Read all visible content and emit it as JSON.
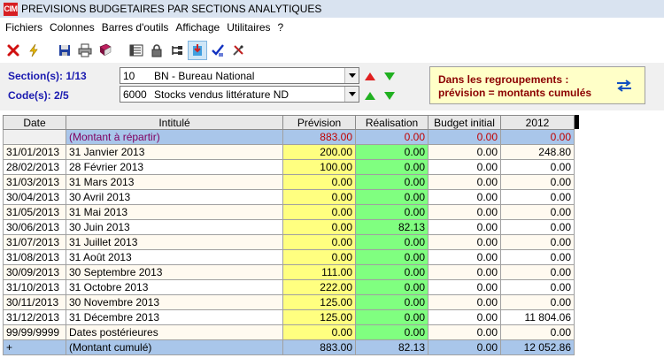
{
  "window": {
    "logo": "CIM",
    "title": "PREVISIONS BUDGETAIRES PAR SECTIONS ANALYTIQUES"
  },
  "menu": [
    "Fichiers",
    "Colonnes",
    "Barres d'outils",
    "Affichage",
    "Utilitaires",
    "?"
  ],
  "toolbar": {
    "buttons": [
      "close-icon",
      "lightning-icon",
      "save-icon",
      "print-icon",
      "book-icon",
      "list-view-icon",
      "lock-icon",
      "tree-icon",
      "import-icon",
      "check-icon",
      "tools-icon"
    ]
  },
  "filters": {
    "section_label": "Section(s): 1/13",
    "section_code": "10",
    "section_name": "BN - Bureau National",
    "code_label": "Code(s): 2/5",
    "code_code": "6000",
    "code_name": "Stocks vendus littérature ND"
  },
  "notice": {
    "line1": "Dans les regroupements :",
    "line2": "prévision = montants cumulés"
  },
  "colors": {
    "header_bg": "#e8e8e8",
    "special_row_bg": "#a9c6ea",
    "prevision_cell": "#ffff80",
    "realisation_cell": "#80ff80",
    "label_accent": "#1a1ab0",
    "notice_text": "#8b0000"
  },
  "grid": {
    "columns": [
      "Date",
      "Intitulé",
      "Prévision",
      "Réalisation",
      "Budget initial",
      "2012"
    ],
    "first_row": {
      "date": "",
      "label": "(Montant à répartir)",
      "prevision": "883.00",
      "realisation": "0.00",
      "budget": "0.00",
      "y2012": "0.00"
    },
    "rows": [
      {
        "date": "31/01/2013",
        "label": "31 Janvier 2013",
        "prevision": "200.00",
        "realisation": "0.00",
        "budget": "0.00",
        "y2012": "248.80"
      },
      {
        "date": "28/02/2013",
        "label": "28 Février 2013",
        "prevision": "100.00",
        "realisation": "0.00",
        "budget": "0.00",
        "y2012": "0.00"
      },
      {
        "date": "31/03/2013",
        "label": "31 Mars 2013",
        "prevision": "0.00",
        "realisation": "0.00",
        "budget": "0.00",
        "y2012": "0.00"
      },
      {
        "date": "30/04/2013",
        "label": "30 Avril 2013",
        "prevision": "0.00",
        "realisation": "0.00",
        "budget": "0.00",
        "y2012": "0.00"
      },
      {
        "date": "31/05/2013",
        "label": "31 Mai 2013",
        "prevision": "0.00",
        "realisation": "0.00",
        "budget": "0.00",
        "y2012": "0.00"
      },
      {
        "date": "30/06/2013",
        "label": "30 Juin 2013",
        "prevision": "0.00",
        "realisation": "82.13",
        "budget": "0.00",
        "y2012": "0.00"
      },
      {
        "date": "31/07/2013",
        "label": "31 Juillet 2013",
        "prevision": "0.00",
        "realisation": "0.00",
        "budget": "0.00",
        "y2012": "0.00"
      },
      {
        "date": "31/08/2013",
        "label": "31 Août 2013",
        "prevision": "0.00",
        "realisation": "0.00",
        "budget": "0.00",
        "y2012": "0.00"
      },
      {
        "date": "30/09/2013",
        "label": "30 Septembre 2013",
        "prevision": "111.00",
        "realisation": "0.00",
        "budget": "0.00",
        "y2012": "0.00"
      },
      {
        "date": "31/10/2013",
        "label": "31 Octobre 2013",
        "prevision": "222.00",
        "realisation": "0.00",
        "budget": "0.00",
        "y2012": "0.00"
      },
      {
        "date": "30/11/2013",
        "label": "30 Novembre 2013",
        "prevision": "125.00",
        "realisation": "0.00",
        "budget": "0.00",
        "y2012": "0.00"
      },
      {
        "date": "31/12/2013",
        "label": "31 Décembre 2013",
        "prevision": "125.00",
        "realisation": "0.00",
        "budget": "0.00",
        "y2012": "11 804.06"
      },
      {
        "date": "99/99/9999",
        "label": "Dates postérieures",
        "prevision": "0.00",
        "realisation": "0.00",
        "budget": "0.00",
        "y2012": "0.00"
      }
    ],
    "total_row": {
      "date": "+",
      "label": "(Montant cumulé)",
      "prevision": "883.00",
      "realisation": "82.13",
      "budget": "0.00",
      "y2012": "12 052.86"
    }
  }
}
